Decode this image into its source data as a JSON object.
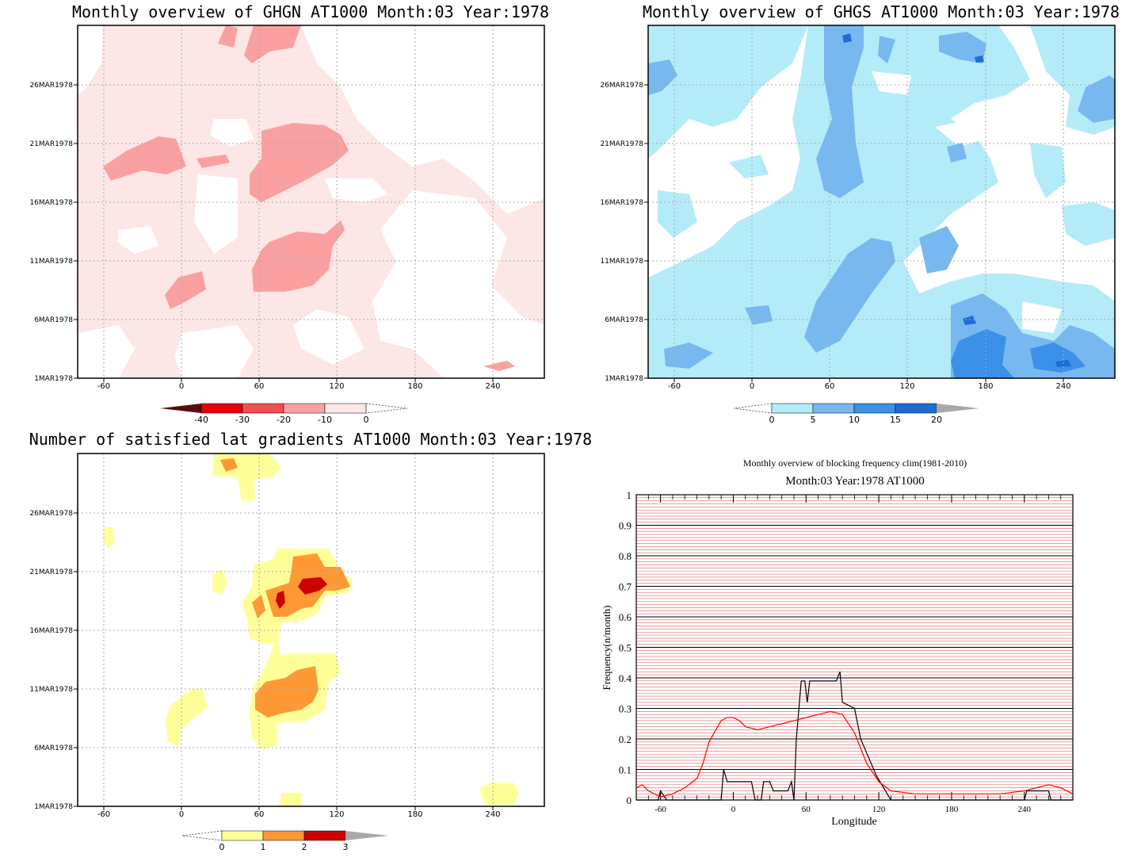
{
  "panels": {
    "ghgn": {
      "title": "Monthly overview of GHGN AT1000 Month:03 Year:1978",
      "colorbar": {
        "labels": [
          "-40",
          "-30",
          "-20",
          "-10",
          "0"
        ],
        "colors": [
          "#5a0a0a",
          "#e8000a",
          "#f05050",
          "#faa0a0",
          "#fde6e6"
        ]
      }
    },
    "ghgs": {
      "title": "Monthly overview of GHGS AT1000 Month:03 Year:1978",
      "colorbar": {
        "labels": [
          "0",
          "5",
          "10",
          "15",
          "20"
        ],
        "colors": [
          "#b3ecf8",
          "#78b8f0",
          "#3c90e8",
          "#1e6ed2",
          "#a8a8a8"
        ]
      }
    },
    "gradients": {
      "title": "Number of satisfied lat gradients AT1000 Month:03 Year:1978",
      "colorbar": {
        "labels": [
          "0",
          "1",
          "2",
          "3"
        ],
        "colors": [
          "#ffff99",
          "#ff9933",
          "#cc0000",
          "#a8a8a8"
        ]
      }
    }
  },
  "map_axes": {
    "x_ticks": [
      "-60",
      "0",
      "60",
      "120",
      "180",
      "240"
    ],
    "y_ticks": [
      "1MAR1978",
      "6MAR1978",
      "11MAR1978",
      "16MAR1978",
      "21MAR1978",
      "26MAR1978"
    ]
  },
  "chart_data": [
    {
      "type": "line",
      "title": "Monthly overview of blocking frequency clim(1981-2010)",
      "subtitle": "Month:03 Year:1978  AT1000",
      "xlabel": "Longitude",
      "ylabel": "Frequency(n/month)",
      "xlim": [
        -80,
        280
      ],
      "ylim": [
        0,
        1
      ],
      "x_ticks": [
        "-60",
        "0",
        "60",
        "120",
        "180",
        "240"
      ],
      "y_ticks": [
        "0",
        "0.1",
        "0.2",
        "0.3",
        "0.4",
        "0.5",
        "0.6",
        "0.7",
        "0.8",
        "0.9",
        "1"
      ],
      "grid": true,
      "series": [
        {
          "color": "#000000",
          "points": [
            [
              -80,
              0
            ],
            [
              -62,
              0
            ],
            [
              -60,
              0.03
            ],
            [
              -55,
              0
            ],
            [
              -10,
              0
            ],
            [
              -8,
              0.1
            ],
            [
              -5,
              0.06
            ],
            [
              15,
              0.06
            ],
            [
              18,
              0
            ],
            [
              23,
              0
            ],
            [
              25,
              0.06
            ],
            [
              30,
              0.06
            ],
            [
              33,
              0.03
            ],
            [
              45,
              0.03
            ],
            [
              48,
              0.06
            ],
            [
              50,
              0
            ],
            [
              52,
              0.2
            ],
            [
              56,
              0.39
            ],
            [
              59,
              0.39
            ],
            [
              61,
              0.32
            ],
            [
              63,
              0.39
            ],
            [
              85,
              0.39
            ],
            [
              88,
              0.42
            ],
            [
              90,
              0.32
            ],
            [
              100,
              0.3
            ],
            [
              105,
              0.2
            ],
            [
              118,
              0.08
            ],
            [
              130,
              0
            ],
            [
              240,
              0
            ],
            [
              242,
              0.03
            ],
            [
              260,
              0.03
            ],
            [
              262,
              0
            ],
            [
              280,
              0
            ]
          ]
        },
        {
          "color": "#ff0000",
          "points": [
            [
              -80,
              0.04
            ],
            [
              -75,
              0.05
            ],
            [
              -70,
              0.03
            ],
            [
              -60,
              0.01
            ],
            [
              -50,
              0.02
            ],
            [
              -40,
              0.04
            ],
            [
              -30,
              0.07
            ],
            [
              -25,
              0.12
            ],
            [
              -20,
              0.19
            ],
            [
              -10,
              0.26
            ],
            [
              -5,
              0.27
            ],
            [
              0,
              0.27
            ],
            [
              5,
              0.26
            ],
            [
              10,
              0.24
            ],
            [
              20,
              0.23
            ],
            [
              30,
              0.24
            ],
            [
              40,
              0.25
            ],
            [
              50,
              0.26
            ],
            [
              60,
              0.27
            ],
            [
              70,
              0.28
            ],
            [
              80,
              0.29
            ],
            [
              90,
              0.28
            ],
            [
              100,
              0.22
            ],
            [
              110,
              0.12
            ],
            [
              120,
              0.06
            ],
            [
              130,
              0.03
            ],
            [
              150,
              0.02
            ],
            [
              180,
              0.02
            ],
            [
              200,
              0.02
            ],
            [
              220,
              0.02
            ],
            [
              240,
              0.03
            ],
            [
              250,
              0.04
            ],
            [
              260,
              0.05
            ],
            [
              270,
              0.04
            ],
            [
              280,
              0.02
            ]
          ]
        }
      ]
    }
  ]
}
